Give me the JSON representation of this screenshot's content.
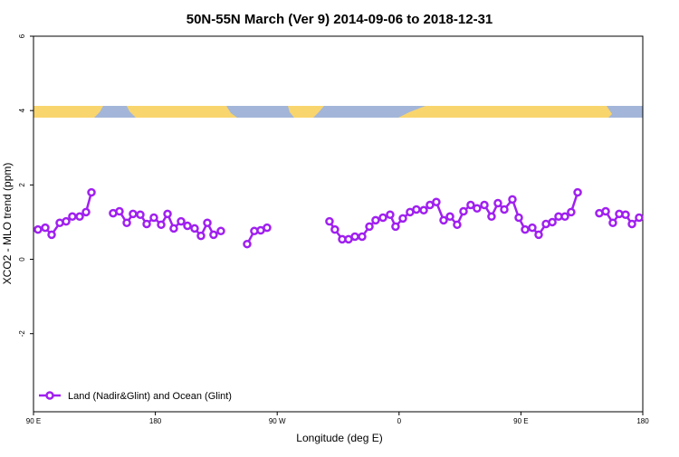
{
  "chart_data": {
    "type": "line",
    "title": "50N-55N March (Ver 9)   2014-09-06 to 2018-12-31",
    "x_label": "Longitude (deg E)",
    "y_label": "XCO2 - MLO trend (ppm)",
    "xlim": [
      90,
      540
    ],
    "ylim": [
      -4.1,
      6
    ],
    "xticks": [
      {
        "value": 90,
        "label": "90 E"
      },
      180,
      {
        "value": 270,
        "label": "90 W"
      },
      {
        "value": 360,
        "label": "0"
      },
      {
        "value": 450,
        "label": "90 E"
      },
      {
        "value": 540,
        "label": "180"
      }
    ],
    "yticks": [
      6,
      4,
      2,
      0,
      -2
    ],
    "legend": "bottom-left",
    "x": [
      93.3,
      98.7,
      103.4,
      109.4,
      114.1,
      118.7,
      124.1,
      128.8,
      132.8,
      140,
      148.8,
      153.5,
      158.9,
      163.5,
      168.9,
      173.6,
      178.9,
      184.3,
      189.0,
      193.6,
      199.0,
      203.7,
      209.0,
      213.7,
      218.4,
      223.0,
      228.4,
      238,
      247.8,
      253.1,
      257.8,
      262.5,
      285,
      308.6,
      312.6,
      318.0,
      322.7,
      327.4,
      332.7,
      338.1,
      342.7,
      348.1,
      353.4,
      357.4,
      362.8,
      368.1,
      372.8,
      378.2,
      382.8,
      387.5,
      392.9,
      397.6,
      402.9,
      407.6,
      412.9,
      417.6,
      423.0,
      428.3,
      433.0,
      437.7,
      443.7,
      448.4,
      453.1,
      458.4,
      463.1,
      468.5,
      473.2,
      477.8,
      482.5,
      487.1,
      491.9,
      500,
      507.9,
      512.6,
      517.9,
      522.6,
      527.3,
      532.0,
      537.3
    ],
    "series": [
      {
        "name": "Land (Nadir&Glint) and Ocean (Glint)",
        "color": "#a020f0",
        "values": [
          0.8,
          0.85,
          0.66,
          0.98,
          1.02,
          1.15,
          1.15,
          1.27,
          1.8,
          null,
          1.24,
          1.29,
          0.98,
          1.22,
          1.2,
          0.95,
          1.12,
          0.93,
          1.22,
          0.83,
          1.02,
          0.9,
          0.83,
          0.63,
          0.98,
          0.66,
          0.76,
          null,
          0.41,
          0.76,
          0.78,
          0.85,
          null,
          1.02,
          0.8,
          0.54,
          0.54,
          0.61,
          0.61,
          0.88,
          1.05,
          1.12,
          1.2,
          0.88,
          1.1,
          1.27,
          1.34,
          1.32,
          1.46,
          1.54,
          1.05,
          1.15,
          0.93,
          1.29,
          1.46,
          1.37,
          1.46,
          1.15,
          1.51,
          1.34,
          1.61,
          1.12,
          0.8,
          0.85,
          0.66,
          0.95,
          1.0,
          1.15,
          1.15,
          1.27,
          1.8,
          null,
          1.24,
          1.29,
          0.98,
          1.22,
          1.2,
          0.95,
          1.12
        ]
      }
    ]
  }
}
